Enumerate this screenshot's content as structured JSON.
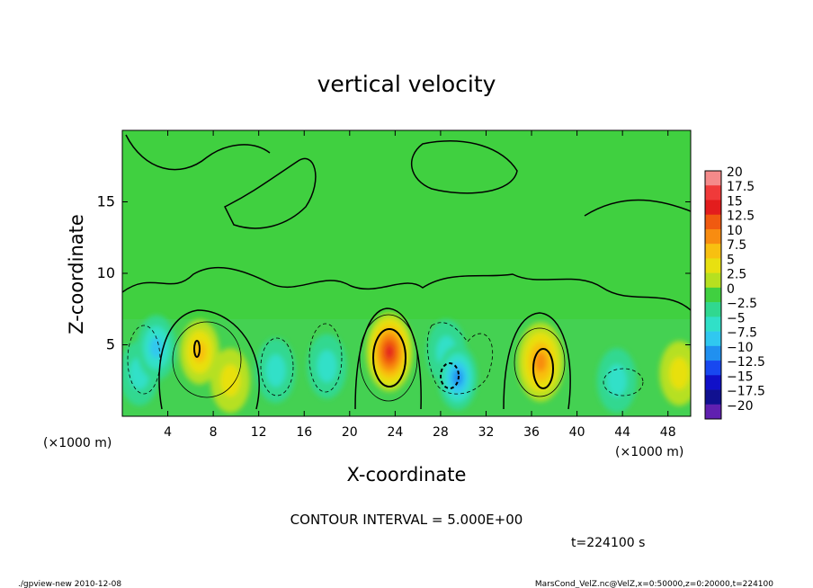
{
  "chart_data": {
    "type": "heatmap",
    "title": "vertical velocity",
    "xlabel": "X-coordinate",
    "ylabel": "Z-coordinate",
    "x_unit_label": "(×1000 m)",
    "x_unit_label_right": "(×1000 m)",
    "xlim": [
      0,
      50
    ],
    "ylim": [
      0,
      20
    ],
    "x_ticks": [
      4,
      8,
      12,
      16,
      20,
      24,
      28,
      32,
      36,
      40,
      44,
      48
    ],
    "y_ticks": [
      5,
      10,
      15
    ],
    "contour_interval_label": "CONTOUR INTERVAL = 5.000E+00",
    "time_label": "t=224100 s",
    "footer_left": "./gpview-new  2010-12-08",
    "footer_right": "MarsCond_VelZ.nc@VelZ,x=0:50000,z=0:20000,t=224100",
    "colorbar": {
      "labels": [
        "20",
        "17.5",
        "15",
        "12.5",
        "10",
        "7.5",
        "5",
        "2.5",
        "0",
        "−2.5",
        "−5",
        "−7.5",
        "−10",
        "−12.5",
        "−15",
        "−17.5",
        "−20"
      ],
      "colors": [
        "#f48a8a",
        "#f03a3a",
        "#e31d1d",
        "#f05a10",
        "#f88c10",
        "#f8c010",
        "#e8e010",
        "#b6e020",
        "#40d040",
        "#30d890",
        "#30e0c8",
        "#30c8f0",
        "#2090f0",
        "#1848f0",
        "#1010c8",
        "#101090",
        "#6020b0"
      ]
    },
    "cells": [
      {
        "x": 1.5,
        "z": 3.0,
        "w": -5.0
      },
      {
        "x": 3.0,
        "z": 4.8,
        "w": -8.0
      },
      {
        "x": 6.8,
        "z": 4.5,
        "w": 9.0
      },
      {
        "x": 9.5,
        "z": 2.5,
        "w": 6.0
      },
      {
        "x": 13.5,
        "z": 3.2,
        "w": -7.0
      },
      {
        "x": 18.0,
        "z": 3.5,
        "w": -7.0
      },
      {
        "x": 23.5,
        "z": 4.5,
        "w": 15.0
      },
      {
        "x": 28.5,
        "z": 4.5,
        "w": -7.0
      },
      {
        "x": 29.5,
        "z": 2.7,
        "w": -10.0
      },
      {
        "x": 36.8,
        "z": 3.8,
        "w": 12.0
      },
      {
        "x": 43.5,
        "z": 2.5,
        "w": -5.0
      },
      {
        "x": 49.0,
        "z": 3.0,
        "w": 6.0
      }
    ]
  }
}
